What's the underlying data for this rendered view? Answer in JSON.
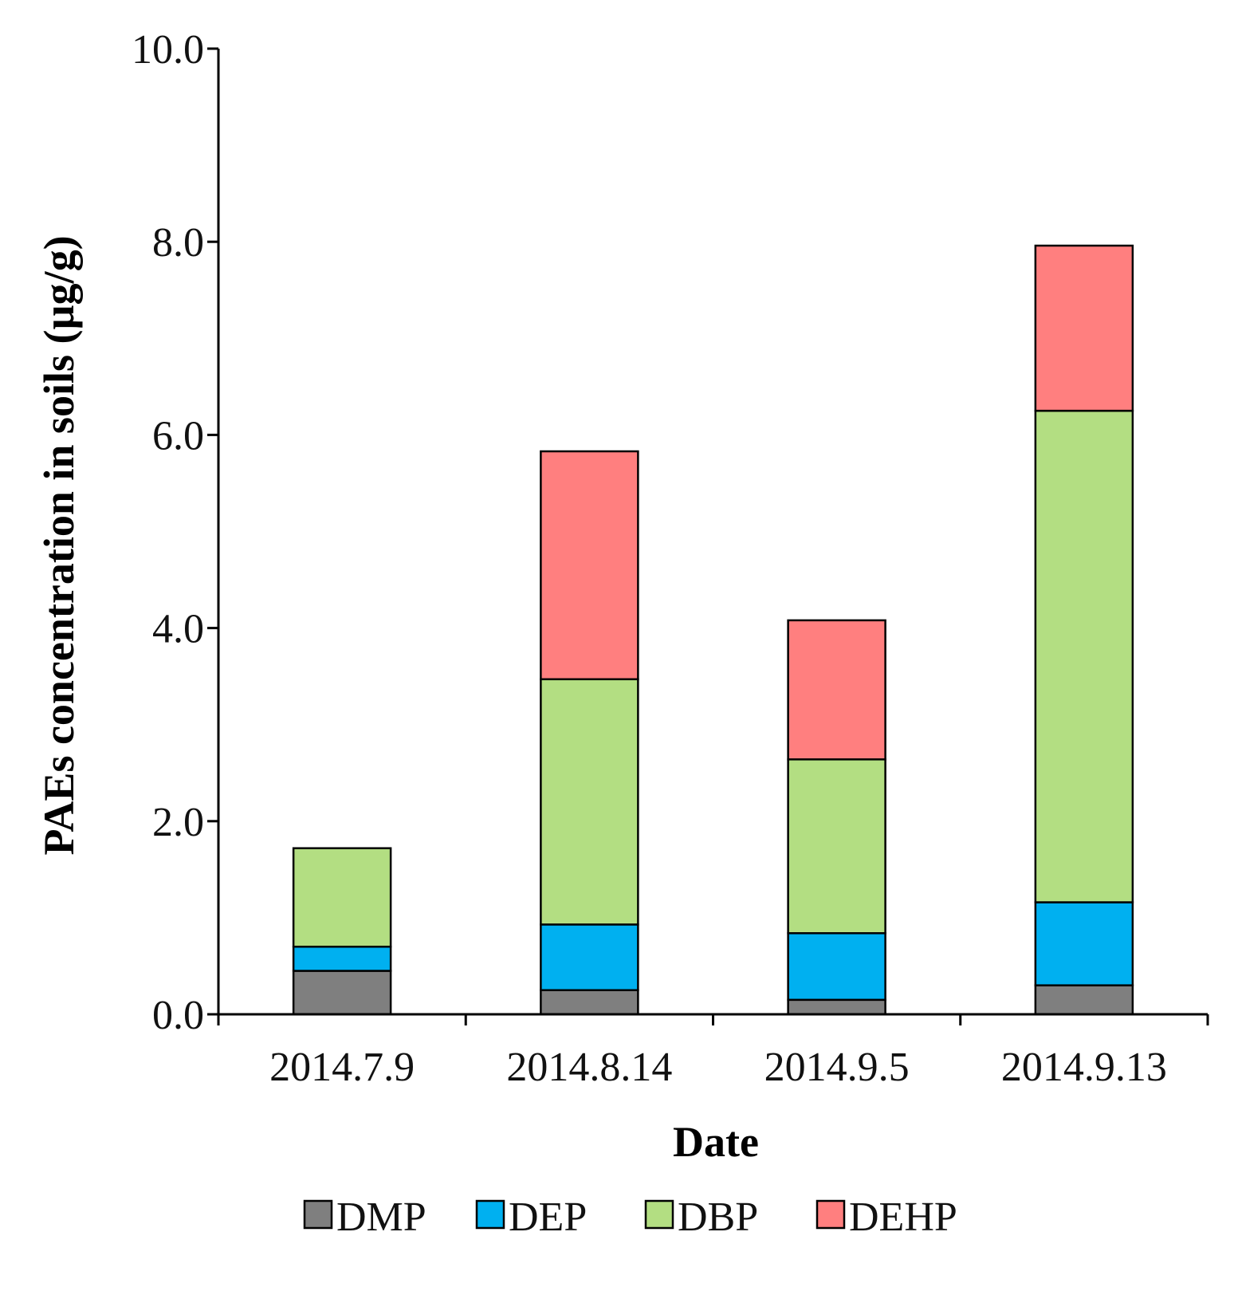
{
  "chart_data": {
    "type": "bar",
    "stacked": true,
    "title": "",
    "xlabel": "Date",
    "ylabel": "PAEs concentration in soils (µg/g)",
    "ylim": [
      0,
      10
    ],
    "yticks": [
      "0.0",
      "2.0",
      "4.0",
      "6.0",
      "8.0",
      "10.0"
    ],
    "categories": [
      "2014.7.9",
      "2014.8.14",
      "2014.9.5",
      "2014.9.13"
    ],
    "series": [
      {
        "name": "DMP",
        "color": "#7f7f7f",
        "values": [
          0.45,
          0.25,
          0.15,
          0.3
        ]
      },
      {
        "name": "DEP",
        "color": "#00b0f0",
        "values": [
          0.25,
          0.68,
          0.69,
          0.86
        ]
      },
      {
        "name": "DBP",
        "color": "#b3de82",
        "values": [
          1.02,
          2.54,
          1.8,
          5.09
        ]
      },
      {
        "name": "DEHP",
        "color": "#ff7f7f",
        "values": [
          0.0,
          2.36,
          1.44,
          1.71
        ]
      }
    ],
    "legend_position": "bottom"
  }
}
